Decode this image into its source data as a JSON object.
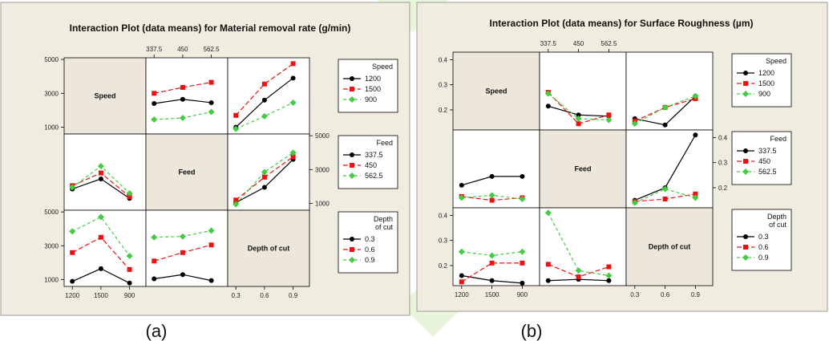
{
  "captions": {
    "a": "(a)",
    "b": "(b)"
  },
  "series_colors": [
    "#000000",
    "#ee1111",
    "#44cc44"
  ],
  "chart_data": [
    {
      "type": "line",
      "title": "Interaction Plot (data means) for Material removal rate (g/min)",
      "factors": [
        {
          "name": "Speed",
          "levels": [
            "1200",
            "1500",
            "900"
          ],
          "legend_title": [
            "Speed"
          ]
        },
        {
          "name": "Feed",
          "levels": [
            "337.5",
            "450",
            "562.5"
          ],
          "legend_title": [
            "Feed"
          ]
        },
        {
          "name": "Depth of cut",
          "levels": [
            "0.3",
            "0.6",
            "0.9"
          ],
          "legend_title": [
            "Depth",
            "of cut"
          ]
        }
      ],
      "ylim": [
        600,
        5100
      ],
      "yticks": [
        1000,
        3000,
        5000
      ],
      "ytick_labels": [
        "1000",
        "3000",
        "5000"
      ],
      "cells": [
        {
          "row": 0,
          "col": 1,
          "series": [
            [
              2400,
              2650,
              2450
            ],
            [
              3000,
              3350,
              3650
            ],
            [
              1450,
              1550,
              1900
            ]
          ]
        },
        {
          "row": 0,
          "col": 2,
          "series": [
            [
              1000,
              2600,
              3900
            ],
            [
              1700,
              3550,
              4750
            ],
            [
              900,
              1650,
              2450
            ]
          ]
        },
        {
          "row": 1,
          "col": 0,
          "series": [
            [
              1850,
              2450,
              1300
            ],
            [
              2050,
              2800,
              1400
            ],
            [
              1950,
              3200,
              1600
            ]
          ]
        },
        {
          "row": 1,
          "col": 2,
          "series": [
            [
              1050,
              1950,
              3600
            ],
            [
              1200,
              2550,
              3750
            ],
            [
              950,
              2850,
              4000
            ]
          ]
        },
        {
          "row": 2,
          "col": 0,
          "series": [
            [
              900,
              1650,
              800
            ],
            [
              2600,
              3500,
              1600
            ],
            [
              3850,
              4700,
              2400
            ]
          ]
        },
        {
          "row": 2,
          "col": 1,
          "series": [
            [
              1050,
              1300,
              950
            ],
            [
              2100,
              2600,
              3050
            ],
            [
              3500,
              3550,
              3900
            ]
          ]
        }
      ]
    },
    {
      "type": "line",
      "title": "Interaction Plot (data means) for Surface Roughness (µm)",
      "factors": [
        {
          "name": "Speed",
          "levels": [
            "1200",
            "1500",
            "900"
          ],
          "legend_title": [
            "Speed"
          ]
        },
        {
          "name": "Feed",
          "levels": [
            "337.5",
            "450",
            "562.5"
          ],
          "legend_title": [
            "Feed"
          ]
        },
        {
          "name": "Depth of cut",
          "levels": [
            "0.3",
            "0.6",
            "0.9"
          ],
          "legend_title": [
            "Depth",
            "of cut"
          ]
        }
      ],
      "ylim": [
        0.12,
        0.43
      ],
      "yticks": [
        0.2,
        0.3,
        0.4
      ],
      "ytick_labels": [
        "0.2",
        "0.3",
        "0.4"
      ],
      "cells": [
        {
          "row": 0,
          "col": 1,
          "series": [
            [
              0.215,
              0.18,
              0.175
            ],
            [
              0.27,
              0.145,
              0.18
            ],
            [
              0.265,
              0.165,
              0.16
            ]
          ]
        },
        {
          "row": 0,
          "col": 2,
          "series": [
            [
              0.165,
              0.14,
              0.255
            ],
            [
              0.155,
              0.21,
              0.245
            ],
            [
              0.145,
              0.21,
              0.255
            ]
          ]
        },
        {
          "row": 1,
          "col": 0,
          "series": [
            [
              0.21,
              0.245,
              0.245
            ],
            [
              0.165,
              0.15,
              0.16
            ],
            [
              0.16,
              0.17,
              0.155
            ]
          ]
        },
        {
          "row": 1,
          "col": 2,
          "series": [
            [
              0.15,
              0.2,
              0.41
            ],
            [
              0.145,
              0.155,
              0.175
            ],
            [
              0.14,
              0.195,
              0.16
            ]
          ]
        },
        {
          "row": 2,
          "col": 0,
          "series": [
            [
              0.16,
              0.14,
              0.13
            ],
            [
              0.135,
              0.21,
              0.21
            ],
            [
              0.255,
              0.24,
              0.255
            ]
          ]
        },
        {
          "row": 2,
          "col": 1,
          "series": [
            [
              0.14,
              0.145,
              0.14
            ],
            [
              0.205,
              0.155,
              0.195
            ],
            [
              0.41,
              0.18,
              0.16
            ]
          ]
        }
      ]
    }
  ]
}
